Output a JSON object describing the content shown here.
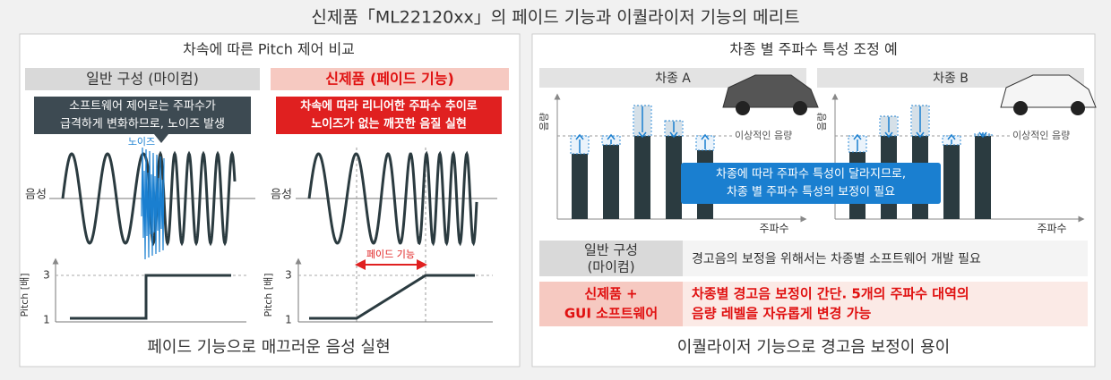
{
  "header": {
    "title": "신제품「ML22120xx」의 페이드 기능과 이퀄라이저 기능의 메리트"
  },
  "left_panel": {
    "title": "차속에 따른 Pitch 제어 비교",
    "columns": [
      {
        "title": "일반 구성 (마이컴)",
        "callout": [
          "소프트웨어 제어로는 주파수가",
          "급격하게 변화하므로, 노이즈 발생"
        ]
      },
      {
        "title": "신제품 (페이드 기능)",
        "callout": [
          "차속에 따라 리니어한 주파수 추이로",
          "노이즈가 없는 깨끗한 음질 실현"
        ]
      }
    ],
    "noise_label": "노이즈",
    "wave_label": "음성",
    "pitch_axis_label": "Pitch [배]",
    "pitch_ticks": [
      "3",
      "1"
    ],
    "fade_label": "페이드 기능",
    "footer": "페이드 기능으로 매끄러운 음성 실현"
  },
  "right_panel": {
    "title": "차종 별 주파수 특성 조정 예",
    "charts": [
      {
        "label": "차종 A"
      },
      {
        "label": "차종 B"
      }
    ],
    "y_axis_label": "음량",
    "x_axis_label": "주파수",
    "ideal_label": "이상적인 음량",
    "callout": [
      "차종에 따라 주파수 특성이 달라지므로,",
      "차종 별 주파수 특성의 보정이 필요"
    ],
    "table": {
      "rows": [
        {
          "label": [
            "일반 구성",
            "(마이컴)"
          ],
          "text": [
            "경고음의 보정을 위해서는 차종별 소프트웨어 개발 필요"
          ]
        },
        {
          "label": [
            "신제품 +",
            "GUI 소프트웨어"
          ],
          "text": [
            "차종별 경고음 보정이 간단. 5개의 주파수 대역의",
            "음량 레벨을 자유롭게 변경 가능"
          ]
        }
      ]
    },
    "footer": "이퀄라이저 기능으로 경고음 보정이 용이"
  }
}
